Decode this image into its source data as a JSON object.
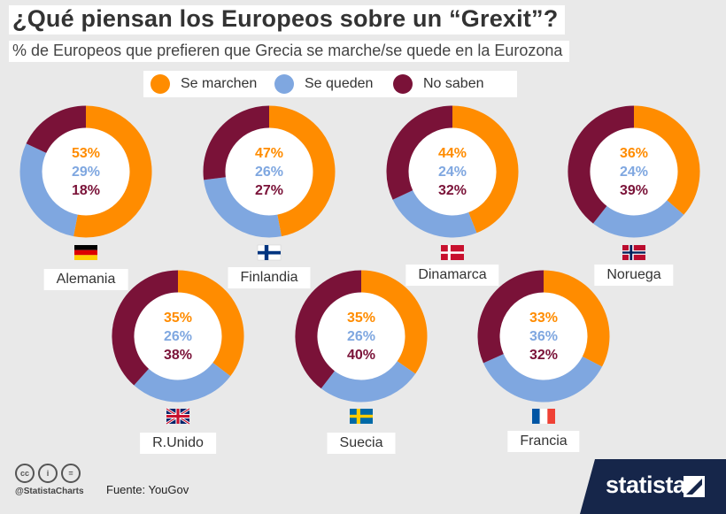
{
  "title": "¿Qué piensan los Europeos sobre un “Grexit”?",
  "subtitle": "% de Europeos que prefieren que Grecia se marche/se quede en la Eurozona",
  "colors": {
    "marchen": "#ff8c00",
    "queden": "#7fa7e0",
    "nosaben": "#7a1238",
    "background": "#e9e9e9",
    "brand": "#16264a"
  },
  "legend": [
    {
      "label": "Se marchen",
      "color": "#ff8c00"
    },
    {
      "label": "Se queden",
      "color": "#7fa7e0"
    },
    {
      "label": "No saben",
      "color": "#7a1238"
    }
  ],
  "chart_data": {
    "type": "pie",
    "variant": "donut",
    "title": "¿Qué piensan los Europeos sobre un “Grexit”?",
    "series_names": [
      "Se marchen",
      "Se queden",
      "No saben"
    ],
    "charts": [
      {
        "country": "Alemania",
        "values": [
          53,
          29,
          18
        ],
        "labels": [
          "53%",
          "29%",
          "18%"
        ]
      },
      {
        "country": "Finlandia",
        "values": [
          47,
          26,
          27
        ],
        "labels": [
          "47%",
          "26%",
          "27%"
        ]
      },
      {
        "country": "Dinamarca",
        "values": [
          44,
          24,
          32
        ],
        "labels": [
          "44%",
          "24%",
          "32%"
        ]
      },
      {
        "country": "Noruega",
        "values": [
          36,
          24,
          39
        ],
        "labels": [
          "36%",
          "24%",
          "39%"
        ]
      },
      {
        "country": "R.Unido",
        "values": [
          35,
          26,
          38
        ],
        "labels": [
          "35%",
          "26%",
          "38%"
        ]
      },
      {
        "country": "Suecia",
        "values": [
          35,
          26,
          40
        ],
        "labels": [
          "35%",
          "26%",
          "40%"
        ]
      },
      {
        "country": "Francia",
        "values": [
          33,
          36,
          32
        ],
        "labels": [
          "33%",
          "36%",
          "32%"
        ]
      }
    ]
  },
  "footer": {
    "icons": [
      "cc-icon",
      "person-icon",
      "equals-icon"
    ],
    "handle": "@StatistaCharts",
    "source": "Fuente: YouGov",
    "brand": "statista"
  }
}
